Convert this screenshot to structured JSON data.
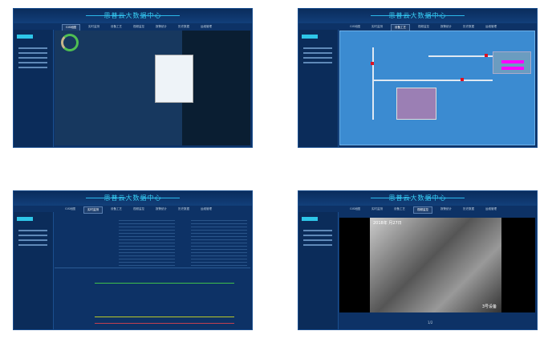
{
  "app": {
    "title": "思普云大数据中心"
  },
  "nav": [
    "GIS地图",
    "实时监测",
    "设备工艺",
    "视频监控",
    "报警统计",
    "历史数据",
    "运维管理"
  ],
  "video": {
    "overlay_date": "2018年 月27日",
    "device_label": "3号设备",
    "pager": "1/2"
  },
  "colors": {
    "panel_bg": "#0d3266",
    "accent": "#2ec6e8",
    "process_bg": "#3b8bd1",
    "alarm": "#e01020",
    "highlight": "#ff00ff"
  }
}
